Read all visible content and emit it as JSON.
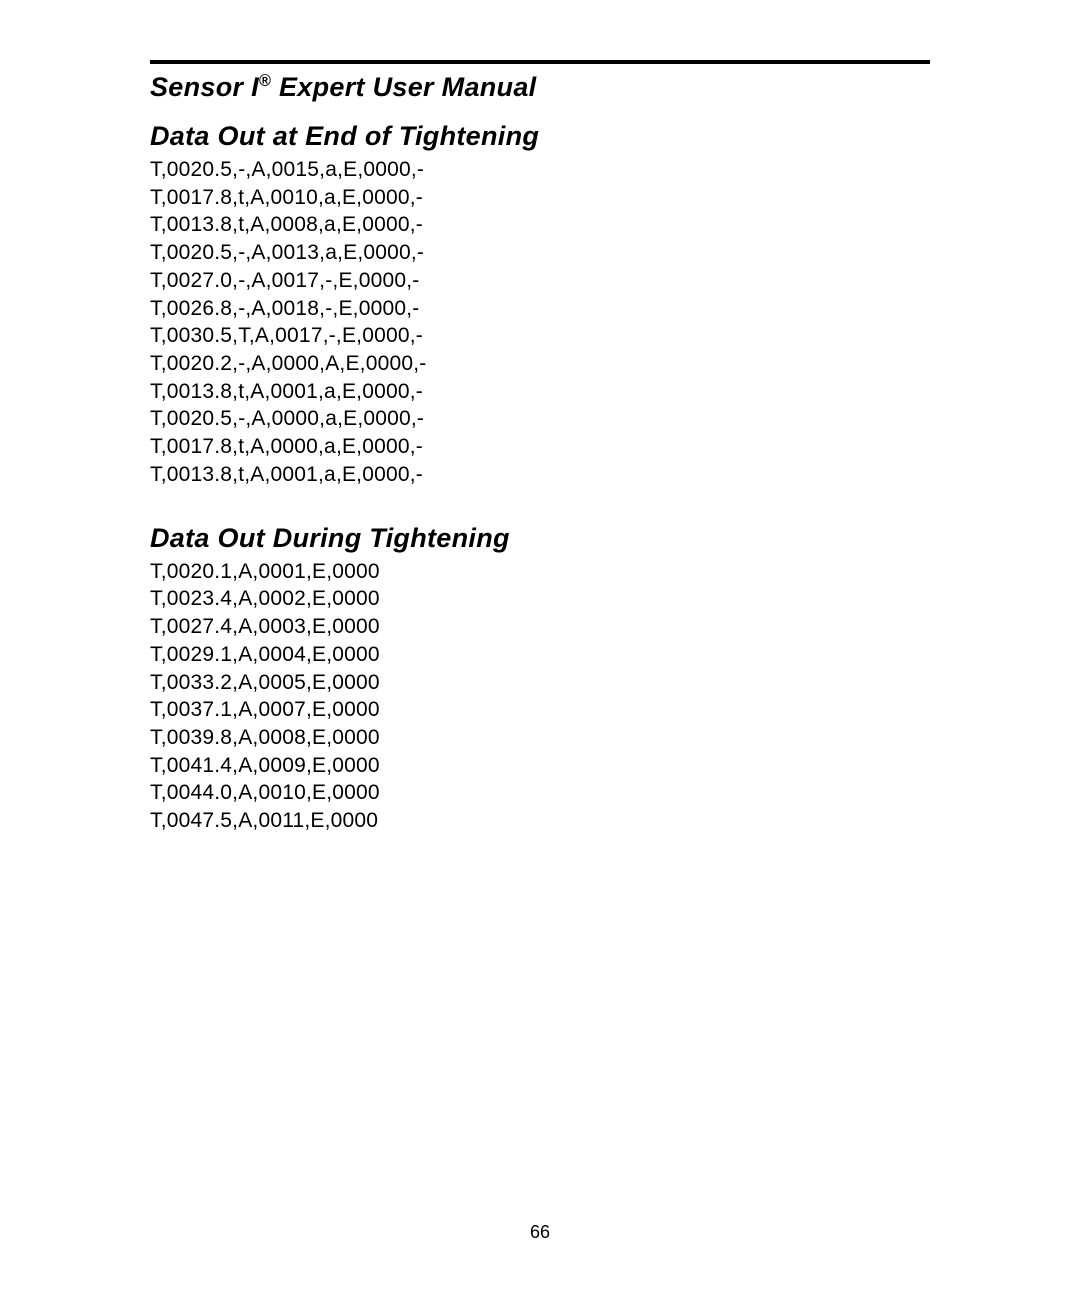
{
  "manual": {
    "title_prefix": "Sensor I",
    "title_suffix": " Expert User Manual",
    "registered_mark": "®"
  },
  "sections": {
    "end": {
      "heading": "Data Out at End of Tightening",
      "lines": [
        "T,0020.5,-,A,0015,a,E,0000,-",
        "T,0017.8,t,A,0010,a,E,0000,-",
        "T,0013.8,t,A,0008,a,E,0000,-",
        "T,0020.5,-,A,0013,a,E,0000,-",
        "T,0027.0,-,A,0017,-,E,0000,-",
        "T,0026.8,-,A,0018,-,E,0000,-",
        "T,0030.5,T,A,0017,-,E,0000,-",
        "T,0020.2,-,A,0000,A,E,0000,-",
        "T,0013.8,t,A,0001,a,E,0000,-",
        "T,0020.5,-,A,0000,a,E,0000,-",
        "T,0017.8,t,A,0000,a,E,0000,-",
        "T,0013.8,t,A,0001,a,E,0000,-"
      ]
    },
    "during": {
      "heading": "Data Out During Tightening",
      "lines": [
        "T,0020.1,A,0001,E,0000",
        "T,0023.4,A,0002,E,0000",
        "T,0027.4,A,0003,E,0000",
        "T,0029.1,A,0004,E,0000",
        "T,0033.2,A,0005,E,0000",
        "T,0037.1,A,0007,E,0000",
        "T,0039.8,A,0008,E,0000",
        "T,0041.4,A,0009,E,0000",
        "T,0044.0,A,0010,E,0000",
        "T,0047.5,A,0011,E,0000"
      ]
    }
  },
  "page_number": "66",
  "styles": {
    "text_color": "#000000",
    "background_color": "#ffffff",
    "rule_color": "#000000",
    "title_fontsize": 27,
    "heading_fontsize": 27,
    "body_fontsize": 21,
    "pagenum_fontsize": 18
  }
}
